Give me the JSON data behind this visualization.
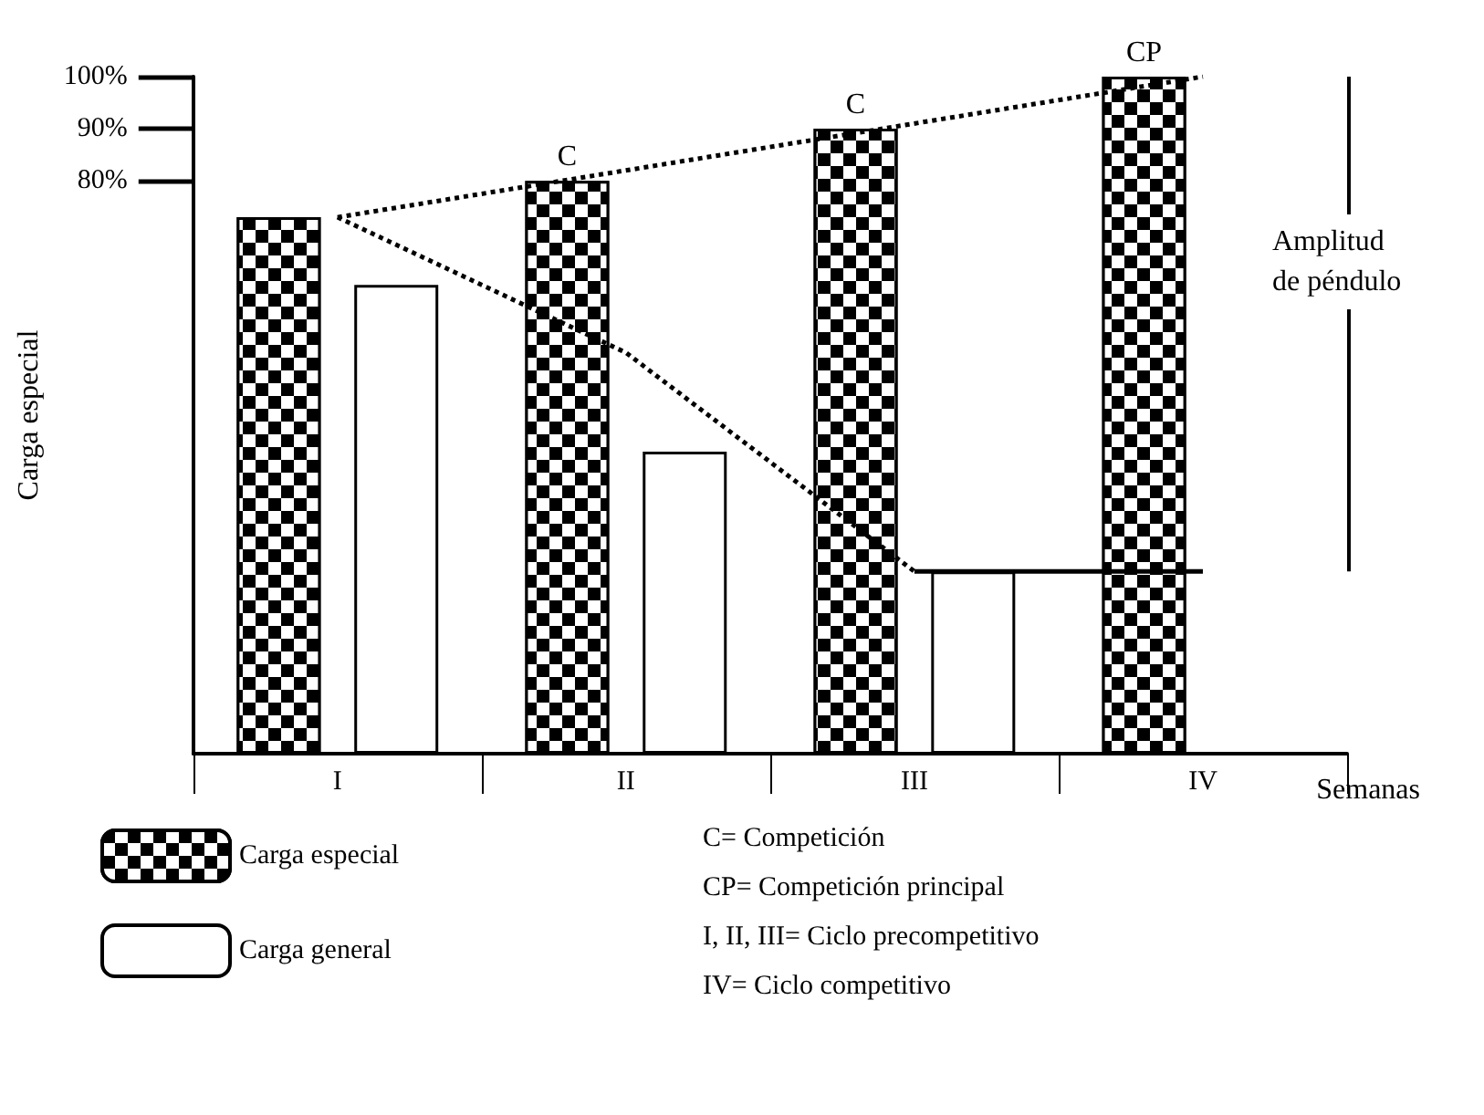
{
  "chart_data": {
    "type": "bar",
    "ylabel": "Carga especial",
    "xlabel": "Semanas",
    "categories": [
      "I",
      "II",
      "III",
      "IV"
    ],
    "series": [
      {
        "name": "Carga especial",
        "color": "#000000",
        "base": [
          -30,
          -30,
          -30,
          -30
        ],
        "values": [
          103,
          110,
          120,
          130
        ],
        "value_labels": [
          null,
          "C",
          "C",
          "CP"
        ]
      },
      {
        "name": "Carga general",
        "color": "#ffffff",
        "base": [
          -30,
          -30,
          -30,
          null
        ],
        "values": [
          90,
          58,
          35,
          null
        ]
      },
      {
        "type": "line",
        "x": [
          "I",
          "IV"
        ],
        "values": [
          73,
          100
        ],
        "color": "#000000",
        "line_style": "dotted"
      },
      {
        "type": "line",
        "x": [
          "I",
          "II",
          "III"
        ],
        "values": [
          73,
          47,
          5
        ],
        "color": "#000000",
        "line_style": "dotted"
      },
      {
        "type": "line",
        "x": [
          "III",
          "IV"
        ],
        "values": [
          5,
          5
        ],
        "color": "#000000",
        "line_style": "solid"
      }
    ],
    "ylim": [
      -30,
      100
    ],
    "yticks": [
      {
        "value": 80,
        "label": "80%"
      },
      {
        "value": 90,
        "label": "90%"
      },
      {
        "value": 100,
        "label": "100%"
      }
    ],
    "annotations": [
      "Amplitud de péndulo",
      "C= Competición",
      "CP= Competición principal",
      "I, II, III= Ciclo precompetitivo",
      "IV= Ciclo competitivo"
    ],
    "grid": false,
    "legend": "bottom left"
  }
}
